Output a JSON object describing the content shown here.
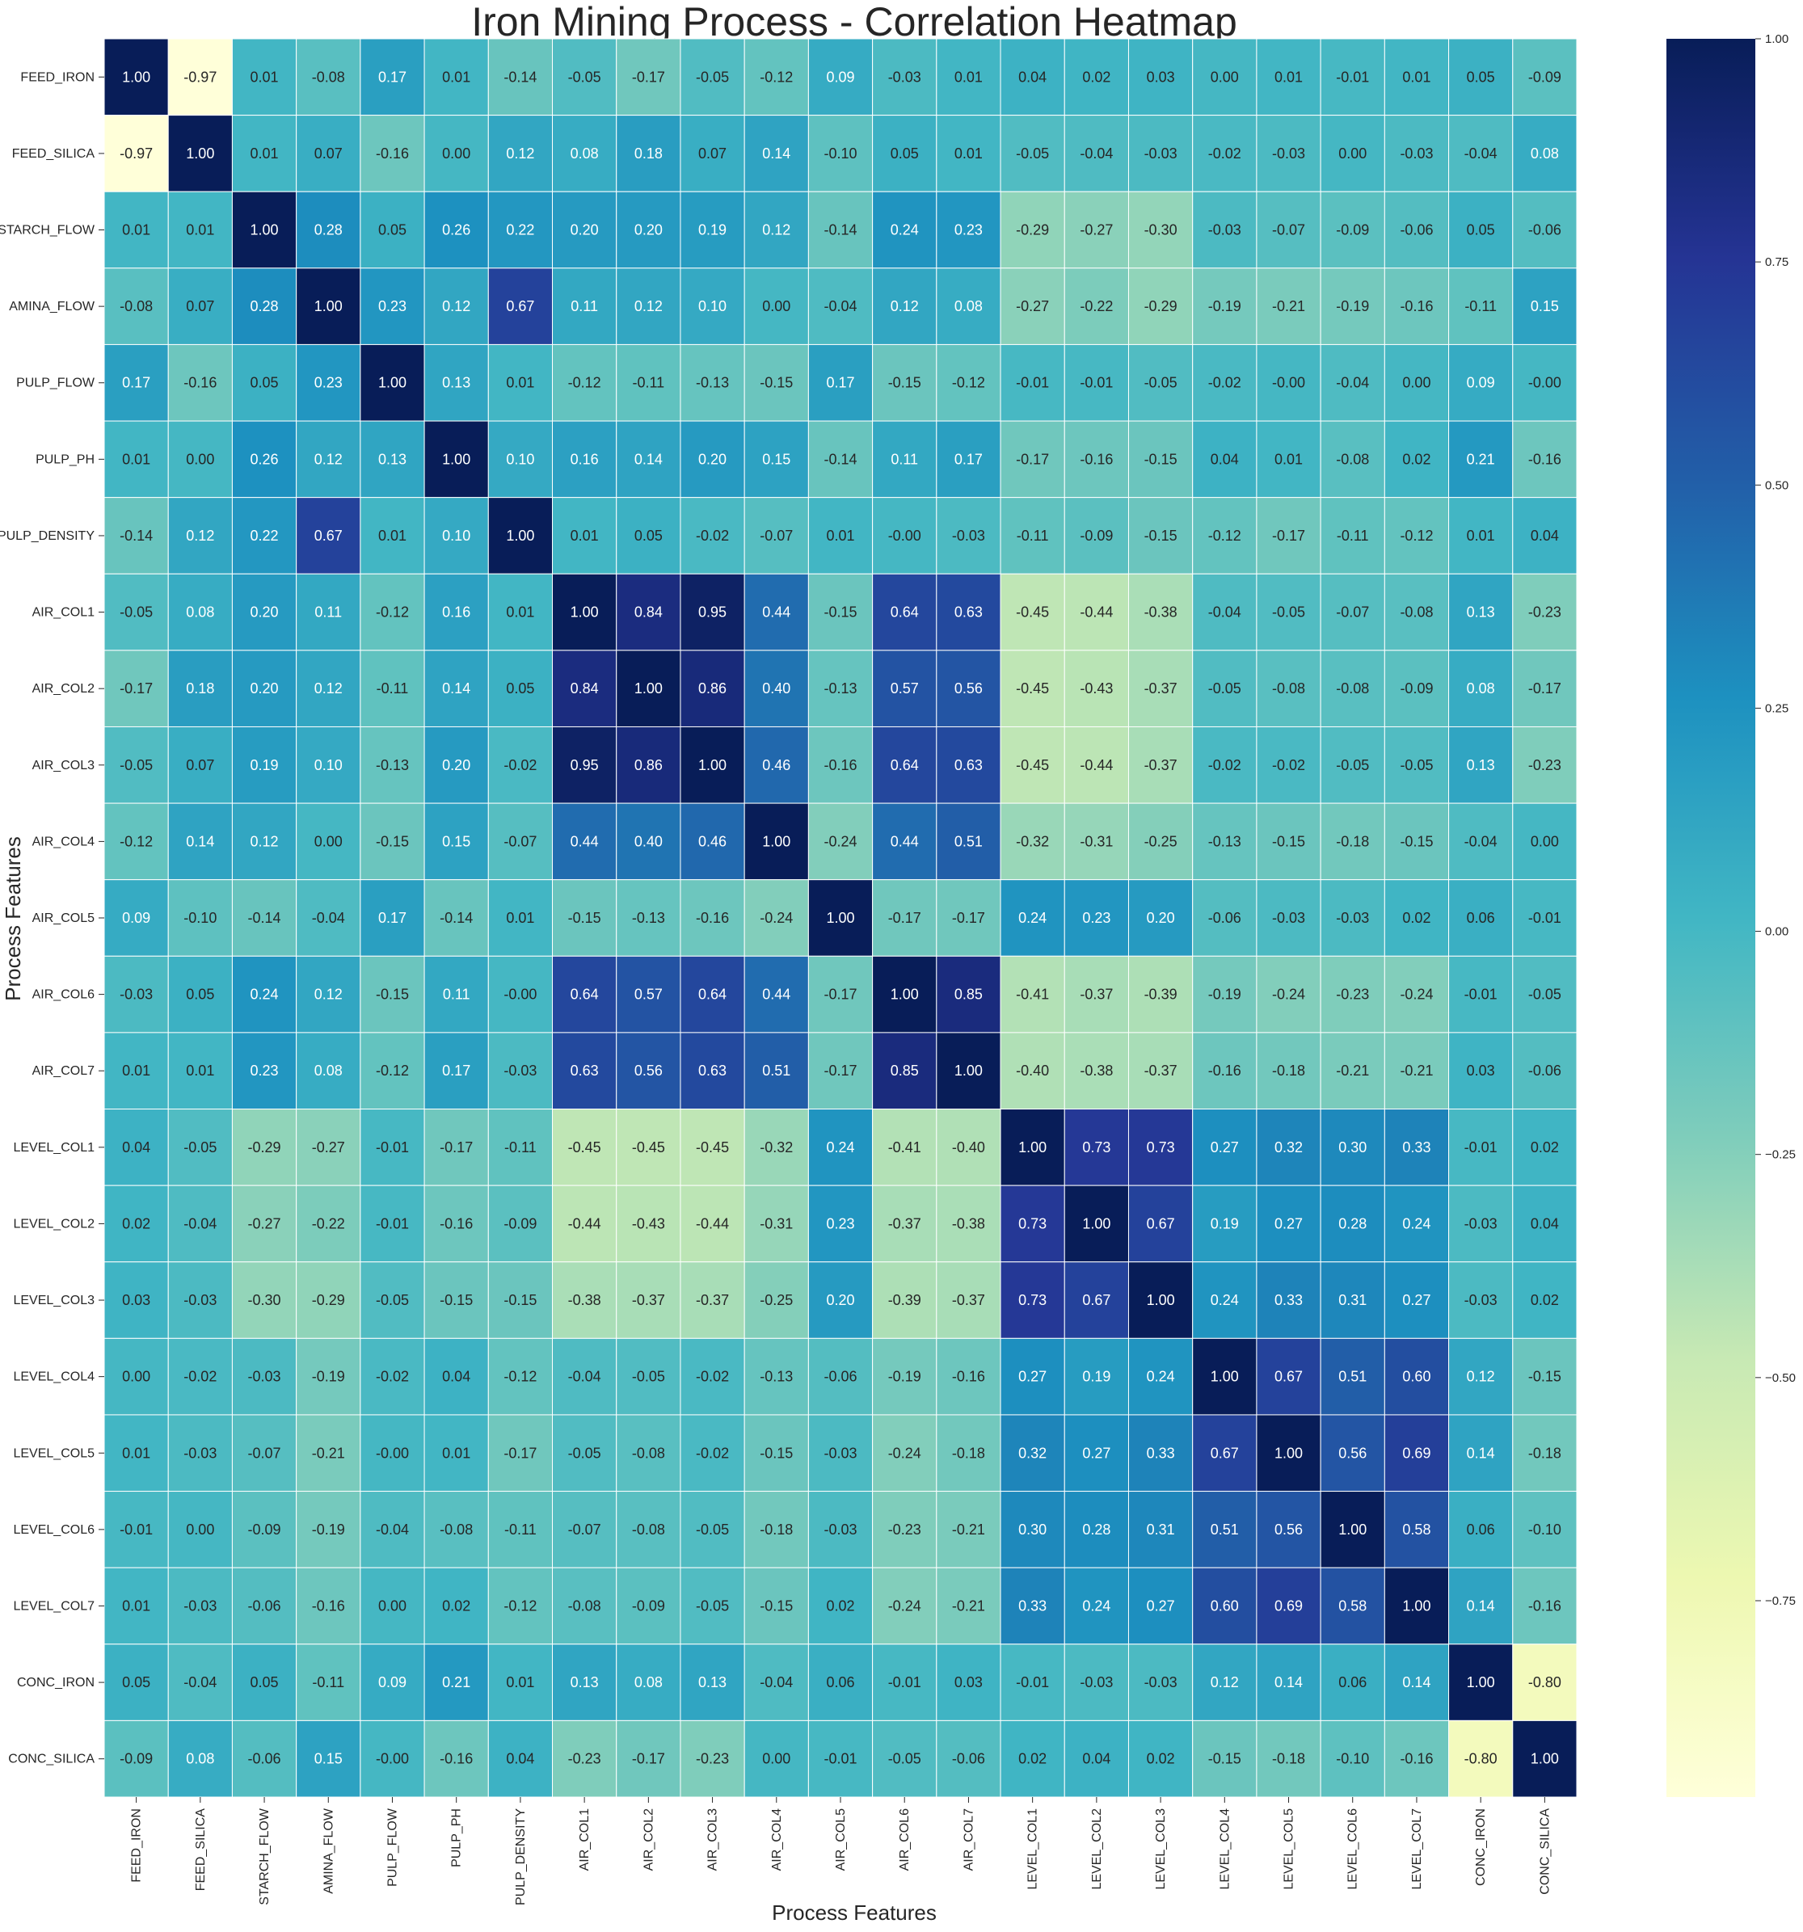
{
  "chart_data": {
    "type": "heatmap",
    "title": "Iron Mining Process - Correlation Heatmap",
    "xlabel": "Process Features",
    "ylabel": "Process Features",
    "colormap": "YlGnBu",
    "value_range": [
      -1,
      1
    ],
    "colorbar_ticks": [
      "1.00",
      "0.75",
      "0.50",
      "0.25",
      "0.00",
      "−0.25",
      "−0.50",
      "−0.75"
    ],
    "colorbar_tick_values": [
      1.0,
      0.75,
      0.5,
      0.25,
      0.0,
      -0.25,
      -0.5,
      -0.75
    ],
    "colorbar_range": [
      -0.97,
      1.0
    ],
    "labels": [
      "FEED_IRON",
      "FEED_SILICA",
      "STARCH_FLOW",
      "AMINA_FLOW",
      "PULP_FLOW",
      "PULP_PH",
      "PULP_DENSITY",
      "AIR_COL1",
      "AIR_COL2",
      "AIR_COL3",
      "AIR_COL4",
      "AIR_COL5",
      "AIR_COL6",
      "AIR_COL7",
      "LEVEL_COL1",
      "LEVEL_COL2",
      "LEVEL_COL3",
      "LEVEL_COL4",
      "LEVEL_COL5",
      "LEVEL_COL6",
      "LEVEL_COL7",
      "CONC_IRON",
      "CONC_SILICA"
    ],
    "cells": [
      [
        "1.00",
        "-0.97",
        "0.01",
        "-0.08",
        "0.17",
        "0.01",
        "-0.14",
        "-0.05",
        "-0.17",
        "-0.05",
        "-0.12",
        "0.09",
        "-0.03",
        "0.01",
        "0.04",
        "0.02",
        "0.03",
        "0.00",
        "0.01",
        "-0.01",
        "0.01",
        "0.05",
        "-0.09"
      ],
      [
        "-0.97",
        "1.00",
        "0.01",
        "0.07",
        "-0.16",
        "0.00",
        "0.12",
        "0.08",
        "0.18",
        "0.07",
        "0.14",
        "-0.10",
        "0.05",
        "0.01",
        "-0.05",
        "-0.04",
        "-0.03",
        "-0.02",
        "-0.03",
        "0.00",
        "-0.03",
        "-0.04",
        "0.08"
      ],
      [
        "0.01",
        "0.01",
        "1.00",
        "0.28",
        "0.05",
        "0.26",
        "0.22",
        "0.20",
        "0.20",
        "0.19",
        "0.12",
        "-0.14",
        "0.24",
        "0.23",
        "-0.29",
        "-0.27",
        "-0.30",
        "-0.03",
        "-0.07",
        "-0.09",
        "-0.06",
        "0.05",
        "-0.06"
      ],
      [
        "-0.08",
        "0.07",
        "0.28",
        "1.00",
        "0.23",
        "0.12",
        "0.67",
        "0.11",
        "0.12",
        "0.10",
        "0.00",
        "-0.04",
        "0.12",
        "0.08",
        "-0.27",
        "-0.22",
        "-0.29",
        "-0.19",
        "-0.21",
        "-0.19",
        "-0.16",
        "-0.11",
        "0.15"
      ],
      [
        "0.17",
        "-0.16",
        "0.05",
        "0.23",
        "1.00",
        "0.13",
        "0.01",
        "-0.12",
        "-0.11",
        "-0.13",
        "-0.15",
        "0.17",
        "-0.15",
        "-0.12",
        "-0.01",
        "-0.01",
        "-0.05",
        "-0.02",
        "-0.00",
        "-0.04",
        "0.00",
        "0.09",
        "-0.00"
      ],
      [
        "0.01",
        "0.00",
        "0.26",
        "0.12",
        "0.13",
        "1.00",
        "0.10",
        "0.16",
        "0.14",
        "0.20",
        "0.15",
        "-0.14",
        "0.11",
        "0.17",
        "-0.17",
        "-0.16",
        "-0.15",
        "0.04",
        "0.01",
        "-0.08",
        "0.02",
        "0.21",
        "-0.16"
      ],
      [
        "-0.14",
        "0.12",
        "0.22",
        "0.67",
        "0.01",
        "0.10",
        "1.00",
        "0.01",
        "0.05",
        "-0.02",
        "-0.07",
        "0.01",
        "-0.00",
        "-0.03",
        "-0.11",
        "-0.09",
        "-0.15",
        "-0.12",
        "-0.17",
        "-0.11",
        "-0.12",
        "0.01",
        "0.04"
      ],
      [
        "-0.05",
        "0.08",
        "0.20",
        "0.11",
        "-0.12",
        "0.16",
        "0.01",
        "1.00",
        "0.84",
        "0.95",
        "0.44",
        "-0.15",
        "0.64",
        "0.63",
        "-0.45",
        "-0.44",
        "-0.38",
        "-0.04",
        "-0.05",
        "-0.07",
        "-0.08",
        "0.13",
        "-0.23"
      ],
      [
        "-0.17",
        "0.18",
        "0.20",
        "0.12",
        "-0.11",
        "0.14",
        "0.05",
        "0.84",
        "1.00",
        "0.86",
        "0.40",
        "-0.13",
        "0.57",
        "0.56",
        "-0.45",
        "-0.43",
        "-0.37",
        "-0.05",
        "-0.08",
        "-0.08",
        "-0.09",
        "0.08",
        "-0.17"
      ],
      [
        "-0.05",
        "0.07",
        "0.19",
        "0.10",
        "-0.13",
        "0.20",
        "-0.02",
        "0.95",
        "0.86",
        "1.00",
        "0.46",
        "-0.16",
        "0.64",
        "0.63",
        "-0.45",
        "-0.44",
        "-0.37",
        "-0.02",
        "-0.02",
        "-0.05",
        "-0.05",
        "0.13",
        "-0.23"
      ],
      [
        "-0.12",
        "0.14",
        "0.12",
        "0.00",
        "-0.15",
        "0.15",
        "-0.07",
        "0.44",
        "0.40",
        "0.46",
        "1.00",
        "-0.24",
        "0.44",
        "0.51",
        "-0.32",
        "-0.31",
        "-0.25",
        "-0.13",
        "-0.15",
        "-0.18",
        "-0.15",
        "-0.04",
        "0.00"
      ],
      [
        "0.09",
        "-0.10",
        "-0.14",
        "-0.04",
        "0.17",
        "-0.14",
        "0.01",
        "-0.15",
        "-0.13",
        "-0.16",
        "-0.24",
        "1.00",
        "-0.17",
        "-0.17",
        "0.24",
        "0.23",
        "0.20",
        "-0.06",
        "-0.03",
        "-0.03",
        "0.02",
        "0.06",
        "-0.01"
      ],
      [
        "-0.03",
        "0.05",
        "0.24",
        "0.12",
        "-0.15",
        "0.11",
        "-0.00",
        "0.64",
        "0.57",
        "0.64",
        "0.44",
        "-0.17",
        "1.00",
        "0.85",
        "-0.41",
        "-0.37",
        "-0.39",
        "-0.19",
        "-0.24",
        "-0.23",
        "-0.24",
        "-0.01",
        "-0.05"
      ],
      [
        "0.01",
        "0.01",
        "0.23",
        "0.08",
        "-0.12",
        "0.17",
        "-0.03",
        "0.63",
        "0.56",
        "0.63",
        "0.51",
        "-0.17",
        "0.85",
        "1.00",
        "-0.40",
        "-0.38",
        "-0.37",
        "-0.16",
        "-0.18",
        "-0.21",
        "-0.21",
        "0.03",
        "-0.06"
      ],
      [
        "0.04",
        "-0.05",
        "-0.29",
        "-0.27",
        "-0.01",
        "-0.17",
        "-0.11",
        "-0.45",
        "-0.45",
        "-0.45",
        "-0.32",
        "0.24",
        "-0.41",
        "-0.40",
        "1.00",
        "0.73",
        "0.73",
        "0.27",
        "0.32",
        "0.30",
        "0.33",
        "-0.01",
        "0.02"
      ],
      [
        "0.02",
        "-0.04",
        "-0.27",
        "-0.22",
        "-0.01",
        "-0.16",
        "-0.09",
        "-0.44",
        "-0.43",
        "-0.44",
        "-0.31",
        "0.23",
        "-0.37",
        "-0.38",
        "0.73",
        "1.00",
        "0.67",
        "0.19",
        "0.27",
        "0.28",
        "0.24",
        "-0.03",
        "0.04"
      ],
      [
        "0.03",
        "-0.03",
        "-0.30",
        "-0.29",
        "-0.05",
        "-0.15",
        "-0.15",
        "-0.38",
        "-0.37",
        "-0.37",
        "-0.25",
        "0.20",
        "-0.39",
        "-0.37",
        "0.73",
        "0.67",
        "1.00",
        "0.24",
        "0.33",
        "0.31",
        "0.27",
        "-0.03",
        "0.02"
      ],
      [
        "0.00",
        "-0.02",
        "-0.03",
        "-0.19",
        "-0.02",
        "0.04",
        "-0.12",
        "-0.04",
        "-0.05",
        "-0.02",
        "-0.13",
        "-0.06",
        "-0.19",
        "-0.16",
        "0.27",
        "0.19",
        "0.24",
        "1.00",
        "0.67",
        "0.51",
        "0.60",
        "0.12",
        "-0.15"
      ],
      [
        "0.01",
        "-0.03",
        "-0.07",
        "-0.21",
        "-0.00",
        "0.01",
        "-0.17",
        "-0.05",
        "-0.08",
        "-0.02",
        "-0.15",
        "-0.03",
        "-0.24",
        "-0.18",
        "0.32",
        "0.27",
        "0.33",
        "0.67",
        "1.00",
        "0.56",
        "0.69",
        "0.14",
        "-0.18"
      ],
      [
        "-0.01",
        "0.00",
        "-0.09",
        "-0.19",
        "-0.04",
        "-0.08",
        "-0.11",
        "-0.07",
        "-0.08",
        "-0.05",
        "-0.18",
        "-0.03",
        "-0.23",
        "-0.21",
        "0.30",
        "0.28",
        "0.31",
        "0.51",
        "0.56",
        "1.00",
        "0.58",
        "0.06",
        "-0.10"
      ],
      [
        "0.01",
        "-0.03",
        "-0.06",
        "-0.16",
        "0.00",
        "0.02",
        "-0.12",
        "-0.08",
        "-0.09",
        "-0.05",
        "-0.15",
        "0.02",
        "-0.24",
        "-0.21",
        "0.33",
        "0.24",
        "0.27",
        "0.60",
        "0.69",
        "0.58",
        "1.00",
        "0.14",
        "-0.16"
      ],
      [
        "0.05",
        "-0.04",
        "0.05",
        "-0.11",
        "0.09",
        "0.21",
        "0.01",
        "0.13",
        "0.08",
        "0.13",
        "-0.04",
        "0.06",
        "-0.01",
        "0.03",
        "-0.01",
        "-0.03",
        "-0.03",
        "0.12",
        "0.14",
        "0.06",
        "0.14",
        "1.00",
        "-0.80"
      ],
      [
        "-0.09",
        "0.08",
        "-0.06",
        "0.15",
        "-0.00",
        "-0.16",
        "0.04",
        "-0.23",
        "-0.17",
        "-0.23",
        "0.00",
        "-0.01",
        "-0.05",
        "-0.06",
        "0.02",
        "0.04",
        "0.02",
        "-0.15",
        "-0.18",
        "-0.10",
        "-0.16",
        "-0.80",
        "1.00"
      ]
    ]
  }
}
